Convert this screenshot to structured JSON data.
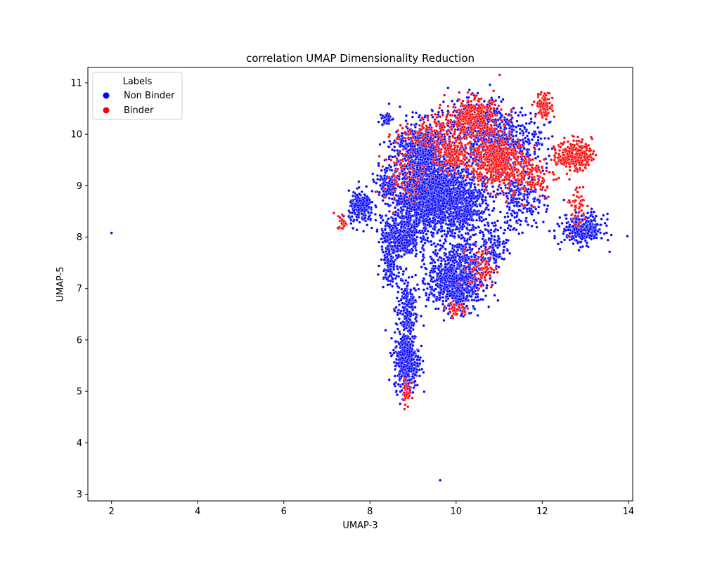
{
  "chart_data": {
    "type": "scatter",
    "title": "correlation UMAP Dimensionality Reduction",
    "xlabel": "UMAP-3",
    "ylabel": "UMAP-5",
    "xlim": [
      1.45,
      14.1
    ],
    "ylim": [
      2.87,
      11.3
    ],
    "xticks": [
      2,
      4,
      6,
      8,
      10,
      12,
      14
    ],
    "yticks": [
      3,
      4,
      5,
      6,
      7,
      8,
      9,
      10,
      11
    ],
    "grid": false,
    "legend": {
      "title": "Labels",
      "placement": "top-left"
    },
    "series": [
      {
        "name": "Non Binder",
        "color": "#0000ff",
        "clusters": [
          {
            "cx": 9.4,
            "cy": 8.8,
            "sx": 0.55,
            "sy": 0.45,
            "n": 1800
          },
          {
            "cx": 9.2,
            "cy": 9.7,
            "sx": 0.4,
            "sy": 0.35,
            "n": 700
          },
          {
            "cx": 10.0,
            "cy": 7.2,
            "sx": 0.4,
            "sy": 0.4,
            "n": 900
          },
          {
            "cx": 8.85,
            "cy": 5.6,
            "sx": 0.18,
            "sy": 0.35,
            "n": 450
          },
          {
            "cx": 8.85,
            "cy": 6.6,
            "sx": 0.15,
            "sy": 0.4,
            "n": 200
          },
          {
            "cx": 8.7,
            "cy": 8.0,
            "sx": 0.28,
            "sy": 0.25,
            "n": 400
          },
          {
            "cx": 7.8,
            "cy": 8.55,
            "sx": 0.18,
            "sy": 0.2,
            "n": 220
          },
          {
            "cx": 8.45,
            "cy": 7.5,
            "sx": 0.12,
            "sy": 0.25,
            "n": 120
          },
          {
            "cx": 12.95,
            "cy": 8.15,
            "sx": 0.3,
            "sy": 0.18,
            "n": 330
          },
          {
            "cx": 11.0,
            "cy": 9.8,
            "sx": 0.6,
            "sy": 0.4,
            "n": 700
          },
          {
            "cx": 10.2,
            "cy": 8.6,
            "sx": 0.4,
            "sy": 0.4,
            "n": 500
          },
          {
            "cx": 10.4,
            "cy": 10.3,
            "sx": 0.4,
            "sy": 0.25,
            "n": 250
          },
          {
            "cx": 11.5,
            "cy": 8.7,
            "sx": 0.35,
            "sy": 0.35,
            "n": 220
          },
          {
            "cx": 10.9,
            "cy": 7.8,
            "sx": 0.2,
            "sy": 0.25,
            "n": 120
          },
          {
            "cx": 8.4,
            "cy": 9.0,
            "sx": 0.15,
            "sy": 0.15,
            "n": 100
          },
          {
            "cx": 8.4,
            "cy": 10.3,
            "sx": 0.08,
            "sy": 0.08,
            "n": 40
          }
        ],
        "outliers": [
          {
            "x": 2.0,
            "y": 8.08
          },
          {
            "x": 9.63,
            "y": 3.27
          }
        ]
      },
      {
        "name": "Binder",
        "color": "#ff0000",
        "clusters": [
          {
            "cx": 10.9,
            "cy": 9.5,
            "sx": 0.35,
            "sy": 0.3,
            "n": 450
          },
          {
            "cx": 10.4,
            "cy": 10.3,
            "sx": 0.4,
            "sy": 0.25,
            "n": 350
          },
          {
            "cx": 12.75,
            "cy": 9.6,
            "sx": 0.25,
            "sy": 0.18,
            "n": 300
          },
          {
            "cx": 12.05,
            "cy": 10.55,
            "sx": 0.12,
            "sy": 0.15,
            "n": 120
          },
          {
            "cx": 9.9,
            "cy": 9.6,
            "sx": 0.25,
            "sy": 0.2,
            "n": 150
          },
          {
            "cx": 9.3,
            "cy": 10.0,
            "sx": 0.45,
            "sy": 0.2,
            "n": 120
          },
          {
            "cx": 10.6,
            "cy": 7.4,
            "sx": 0.2,
            "sy": 0.25,
            "n": 80
          },
          {
            "cx": 11.7,
            "cy": 9.2,
            "sx": 0.4,
            "sy": 0.3,
            "n": 150
          },
          {
            "cx": 7.35,
            "cy": 8.3,
            "sx": 0.07,
            "sy": 0.1,
            "n": 25
          },
          {
            "cx": 8.85,
            "cy": 5.0,
            "sx": 0.06,
            "sy": 0.2,
            "n": 40
          },
          {
            "cx": 10.0,
            "cy": 6.6,
            "sx": 0.15,
            "sy": 0.08,
            "n": 40
          },
          {
            "cx": 12.8,
            "cy": 8.6,
            "sx": 0.15,
            "sy": 0.3,
            "n": 50
          },
          {
            "cx": 8.8,
            "cy": 9.2,
            "sx": 0.3,
            "sy": 0.3,
            "n": 80
          }
        ],
        "outliers": []
      }
    ]
  }
}
